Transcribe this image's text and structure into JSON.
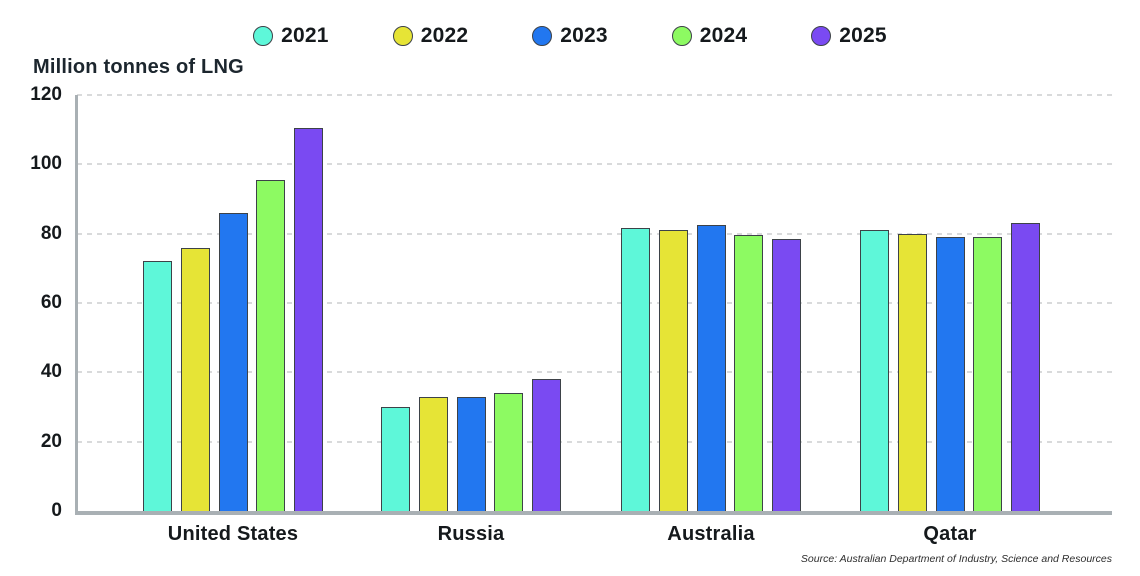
{
  "title": "Million tonnes of LNG",
  "source": "Source: Australian Department of Industry, Science and Resources",
  "colors": {
    "axis": "#a9b0b4",
    "grid": "#d9dadb",
    "text": "#15191c",
    "bar_border": "#3d4248"
  },
  "chart_data": {
    "type": "bar",
    "title": "Million tonnes of LNG",
    "categories": [
      "United States",
      "Russia",
      "Australia",
      "Qatar"
    ],
    "series": [
      {
        "name": "2021",
        "color": "#5ef7d9",
        "values": [
          72,
          30,
          81.5,
          81
        ]
      },
      {
        "name": "2022",
        "color": "#e6e436",
        "values": [
          76,
          33,
          81,
          80
        ]
      },
      {
        "name": "2023",
        "color": "#2277f0",
        "values": [
          86,
          33,
          82.5,
          79
        ]
      },
      {
        "name": "2024",
        "color": "#8dfa62",
        "values": [
          95.5,
          34,
          79.5,
          79
        ]
      },
      {
        "name": "2025",
        "color": "#7a4af2",
        "values": [
          110.5,
          38,
          78.5,
          83
        ]
      }
    ],
    "ylim": [
      0,
      120
    ],
    "ytick_step": 20,
    "xlabel": "",
    "ylabel": "Million tonnes of LNG",
    "grid": "horizontal-dashed",
    "legend_position": "top-center"
  }
}
